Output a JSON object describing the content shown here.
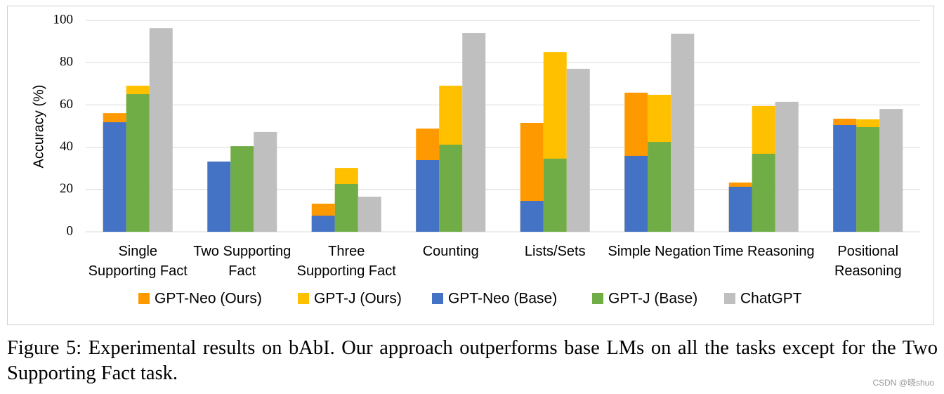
{
  "chart_data": {
    "type": "bar",
    "y_label": "Accuracy (%)",
    "categories": [
      "Single Supporting Fact",
      "Two Supporting Fact",
      "Three Supporting Fact",
      "Counting",
      "Lists/Sets",
      "Simple Negation",
      "Time Reasoning",
      "Positional Reasoning"
    ],
    "series": [
      {
        "name": "GPT-Neo (Ours)",
        "color": "#ff9900",
        "values": [
          56.1,
          null,
          13.3,
          48.8,
          51.5,
          65.8,
          23.3,
          53.5
        ]
      },
      {
        "name": "GPT-J (Ours)",
        "color": "#ffc000",
        "values": [
          69.1,
          null,
          30.2,
          69.1,
          85.0,
          64.8,
          59.5,
          53.2
        ]
      },
      {
        "name": "GPT-Neo (Base)",
        "color": "#4472c4",
        "values": [
          51.8,
          33.2,
          7.6,
          33.9,
          14.6,
          35.9,
          21.3,
          50.5
        ]
      },
      {
        "name": "GPT-J (Base)",
        "color": "#70ad47",
        "values": [
          65.1,
          40.5,
          22.6,
          41.2,
          34.6,
          42.5,
          36.9,
          49.5
        ]
      },
      {
        "name": "ChatGPT",
        "color": "#bfbfbf",
        "values": [
          96.3,
          47.2,
          16.6,
          94.0,
          77.1,
          93.7,
          61.5,
          58.1
        ]
      }
    ],
    "ylim": [
      0,
      100
    ],
    "yticks": [
      0,
      20,
      40,
      60,
      80,
      100
    ],
    "grid": true
  },
  "caption": "Figure 5: Experimental results on bAbI. Our approach outperforms base LMs on all the tasks except for the Two Supporting Fact task.",
  "watermark": "CSDN @晓shuo"
}
